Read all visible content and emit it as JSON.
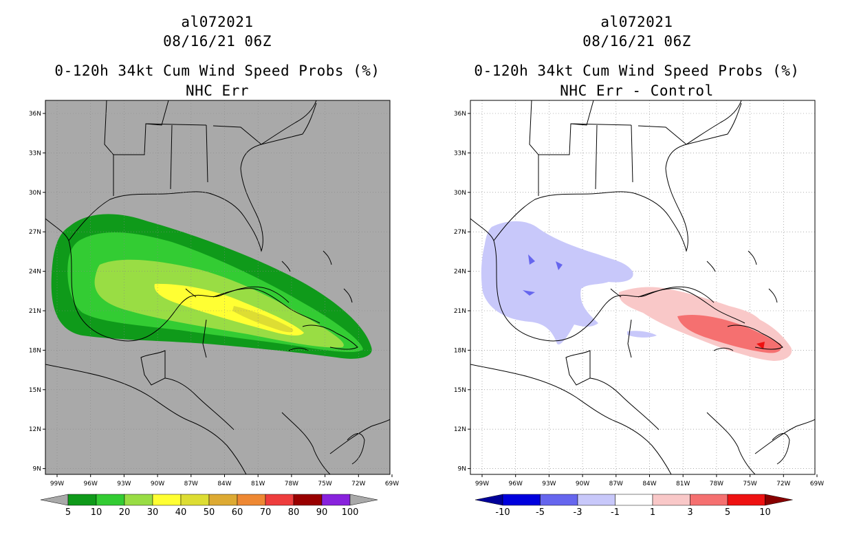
{
  "panels": [
    {
      "id": "left",
      "storm_id": "al072021",
      "datetime": "08/16/21 06Z",
      "product": "0-120h 34kt Cum Wind Speed Probs (%)",
      "subtitle": "NHC Err",
      "background": "#a9a9a9",
      "colorbar": {
        "labels": [
          "5",
          "10",
          "20",
          "30",
          "40",
          "50",
          "60",
          "70",
          "80",
          "90",
          "100"
        ],
        "colors": [
          "#0f9a1a",
          "#33cc33",
          "#99dd44",
          "#ffff33",
          "#dddd33",
          "#ddaa33",
          "#ee8833",
          "#ee3d3d",
          "#990000",
          "#8822dd"
        ],
        "under_color": "#a9a9a9",
        "over_color": "#a9a9a9"
      }
    },
    {
      "id": "right",
      "storm_id": "al072021",
      "datetime": "08/16/21 06Z",
      "product": "0-120h 34kt Cum Wind Speed Probs (%)",
      "subtitle": "NHC Err - Control",
      "background": "#ffffff",
      "colorbar": {
        "labels": [
          "-10",
          "-5",
          "-3",
          "-1",
          "1",
          "3",
          "5",
          "10"
        ],
        "colors": [
          "#0000dd",
          "#6666ee",
          "#c8c8fa",
          "#ffffff",
          "#f9c8c8",
          "#f57070",
          "#ee1111"
        ],
        "under_color": "#000099",
        "over_color": "#880000"
      }
    }
  ],
  "map": {
    "lat_labels": [
      "36N",
      "33N",
      "30N",
      "27N",
      "24N",
      "21N",
      "18N",
      "15N",
      "12N",
      "9N"
    ],
    "lon_labels": [
      "99W",
      "96W",
      "93W",
      "90W",
      "87W",
      "84W",
      "81W",
      "78W",
      "75W",
      "72W",
      "69W"
    ]
  }
}
